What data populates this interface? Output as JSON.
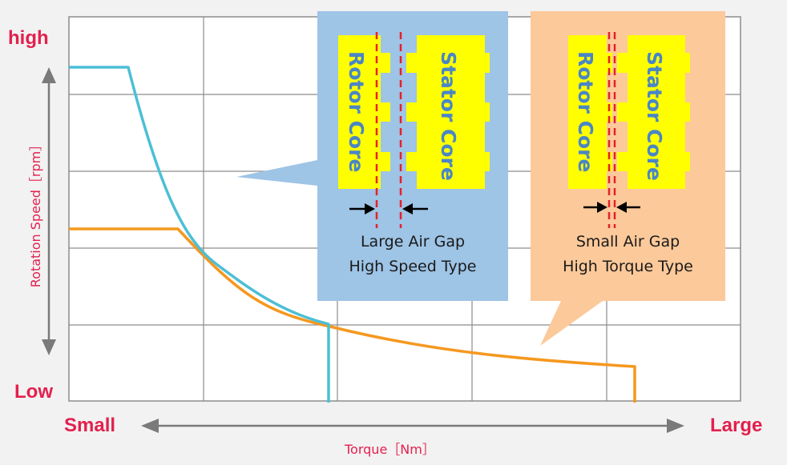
{
  "y_axis": {
    "high_label": "high",
    "low_label": "Low",
    "title": "Rotation Speed［rpm］"
  },
  "x_axis": {
    "small_label": "Small",
    "large_label": "Large",
    "title": "Torque［Nm］"
  },
  "callout_left": {
    "rotor_label": "Rotor Core",
    "stator_label": "Stator Core",
    "caption_line1": "Large Air Gap",
    "caption_line2": "High Speed Type",
    "bg_color": "#9ec4e6"
  },
  "callout_right": {
    "rotor_label": "Rotor Core",
    "stator_label": "Stator Core",
    "caption_line1": "Small Air Gap",
    "caption_line2": "High Torque Type",
    "bg_color": "#fcc99a"
  },
  "colors": {
    "high_speed_curve": "#4cbfd6",
    "high_torque_curve": "#f5981e",
    "labels": "#e3204e",
    "core": "#ffff00",
    "gap_line": "#e8202a"
  }
}
